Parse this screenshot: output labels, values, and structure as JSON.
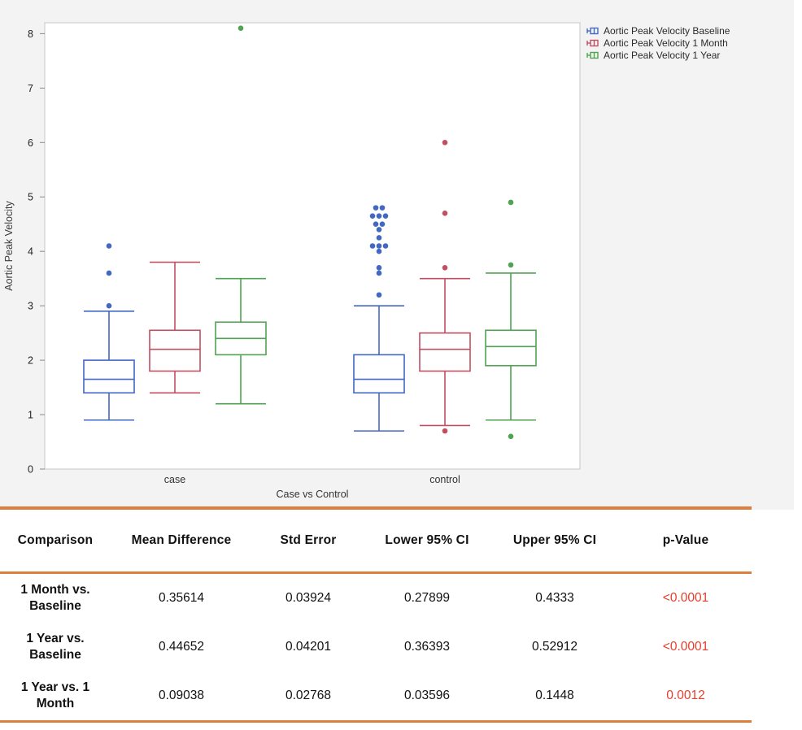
{
  "chart": {
    "yticks": [
      0,
      1,
      2,
      3,
      4,
      5,
      6,
      7,
      8
    ],
    "background": "#f3f3f4",
    "plot_background": "#ffffff",
    "frame_color": "#c7c7c7",
    "axis_text_color": "#222222"
  },
  "chart_data": {
    "type": "boxplot",
    "title": "",
    "xlabel": "Case vs Control",
    "ylabel": "Aortic Peak Velocity",
    "ylim": [
      0,
      8.2
    ],
    "grid": false,
    "legend_position": "top-right",
    "categories": [
      "case",
      "control"
    ],
    "series": [
      {
        "name": "Aortic Peak Velocity Baseline",
        "color": "#4368C4",
        "boxes": [
          {
            "category": "case",
            "low": 0.9,
            "q1": 1.4,
            "median": 1.65,
            "q3": 2.0,
            "high": 2.9,
            "outliers": [
              {
                "v": 3.0
              },
              {
                "v": 3.6
              },
              {
                "v": 4.1
              }
            ]
          },
          {
            "category": "control",
            "low": 0.7,
            "q1": 1.4,
            "median": 1.65,
            "q3": 2.1,
            "high": 3.0,
            "outliers": [
              {
                "v": 3.2
              },
              {
                "v": 3.6
              },
              {
                "v": 3.7
              },
              {
                "v": 4.0
              },
              {
                "v": 4.1,
                "dx": -8
              },
              {
                "v": 4.1
              },
              {
                "v": 4.1,
                "dx": 8
              },
              {
                "v": 4.25
              },
              {
                "v": 4.4
              },
              {
                "v": 4.5,
                "dx": -4
              },
              {
                "v": 4.5,
                "dx": 4
              },
              {
                "v": 4.65,
                "dx": -8
              },
              {
                "v": 4.65
              },
              {
                "v": 4.65,
                "dx": 8
              },
              {
                "v": 4.8,
                "dx": -4
              },
              {
                "v": 4.8,
                "dx": 4
              }
            ]
          }
        ]
      },
      {
        "name": "Aortic Peak Velocity 1 Month",
        "color": "#C14F63",
        "boxes": [
          {
            "category": "case",
            "low": 1.4,
            "q1": 1.8,
            "median": 2.2,
            "q3": 2.55,
            "high": 3.8,
            "outliers": []
          },
          {
            "category": "control",
            "low": 0.8,
            "q1": 1.8,
            "median": 2.2,
            "q3": 2.5,
            "high": 3.5,
            "outliers": [
              {
                "v": 0.7
              },
              {
                "v": 3.7
              },
              {
                "v": 4.7
              },
              {
                "v": 6.0
              }
            ]
          }
        ]
      },
      {
        "name": "Aortic Peak Velocity 1 Year",
        "color": "#4FA351",
        "boxes": [
          {
            "category": "case",
            "low": 1.2,
            "q1": 2.1,
            "median": 2.4,
            "q3": 2.7,
            "high": 3.5,
            "outliers": [
              {
                "v": 8.1
              }
            ]
          },
          {
            "category": "control",
            "low": 0.9,
            "q1": 1.9,
            "median": 2.25,
            "q3": 2.55,
            "high": 3.6,
            "outliers": [
              {
                "v": 0.6
              },
              {
                "v": 3.75
              },
              {
                "v": 4.9
              }
            ]
          }
        ]
      }
    ]
  },
  "table": {
    "rule_color": "#DD7E3E",
    "p_value_color": "#E93C2B",
    "headers": [
      "Comparison",
      "Mean Difference",
      "Std Error",
      "Lower 95% CI",
      "Upper 95% CI",
      "p-Value"
    ],
    "rows": [
      {
        "comparison": "1 Month vs. Baseline",
        "mean_difference": "0.35614",
        "std_error": "0.03924",
        "lower_ci": "0.27899",
        "upper_ci": "0.4333",
        "p_value": "<0.0001"
      },
      {
        "comparison": "1 Year vs. Baseline",
        "mean_difference": "0.44652",
        "std_error": "0.04201",
        "lower_ci": "0.36393",
        "upper_ci": "0.52912",
        "p_value": "<0.0001"
      },
      {
        "comparison": "1 Year vs. 1 Month",
        "mean_difference": "0.09038",
        "std_error": "0.02768",
        "lower_ci": "0.03596",
        "upper_ci": "0.1448",
        "p_value": "0.0012"
      }
    ]
  }
}
